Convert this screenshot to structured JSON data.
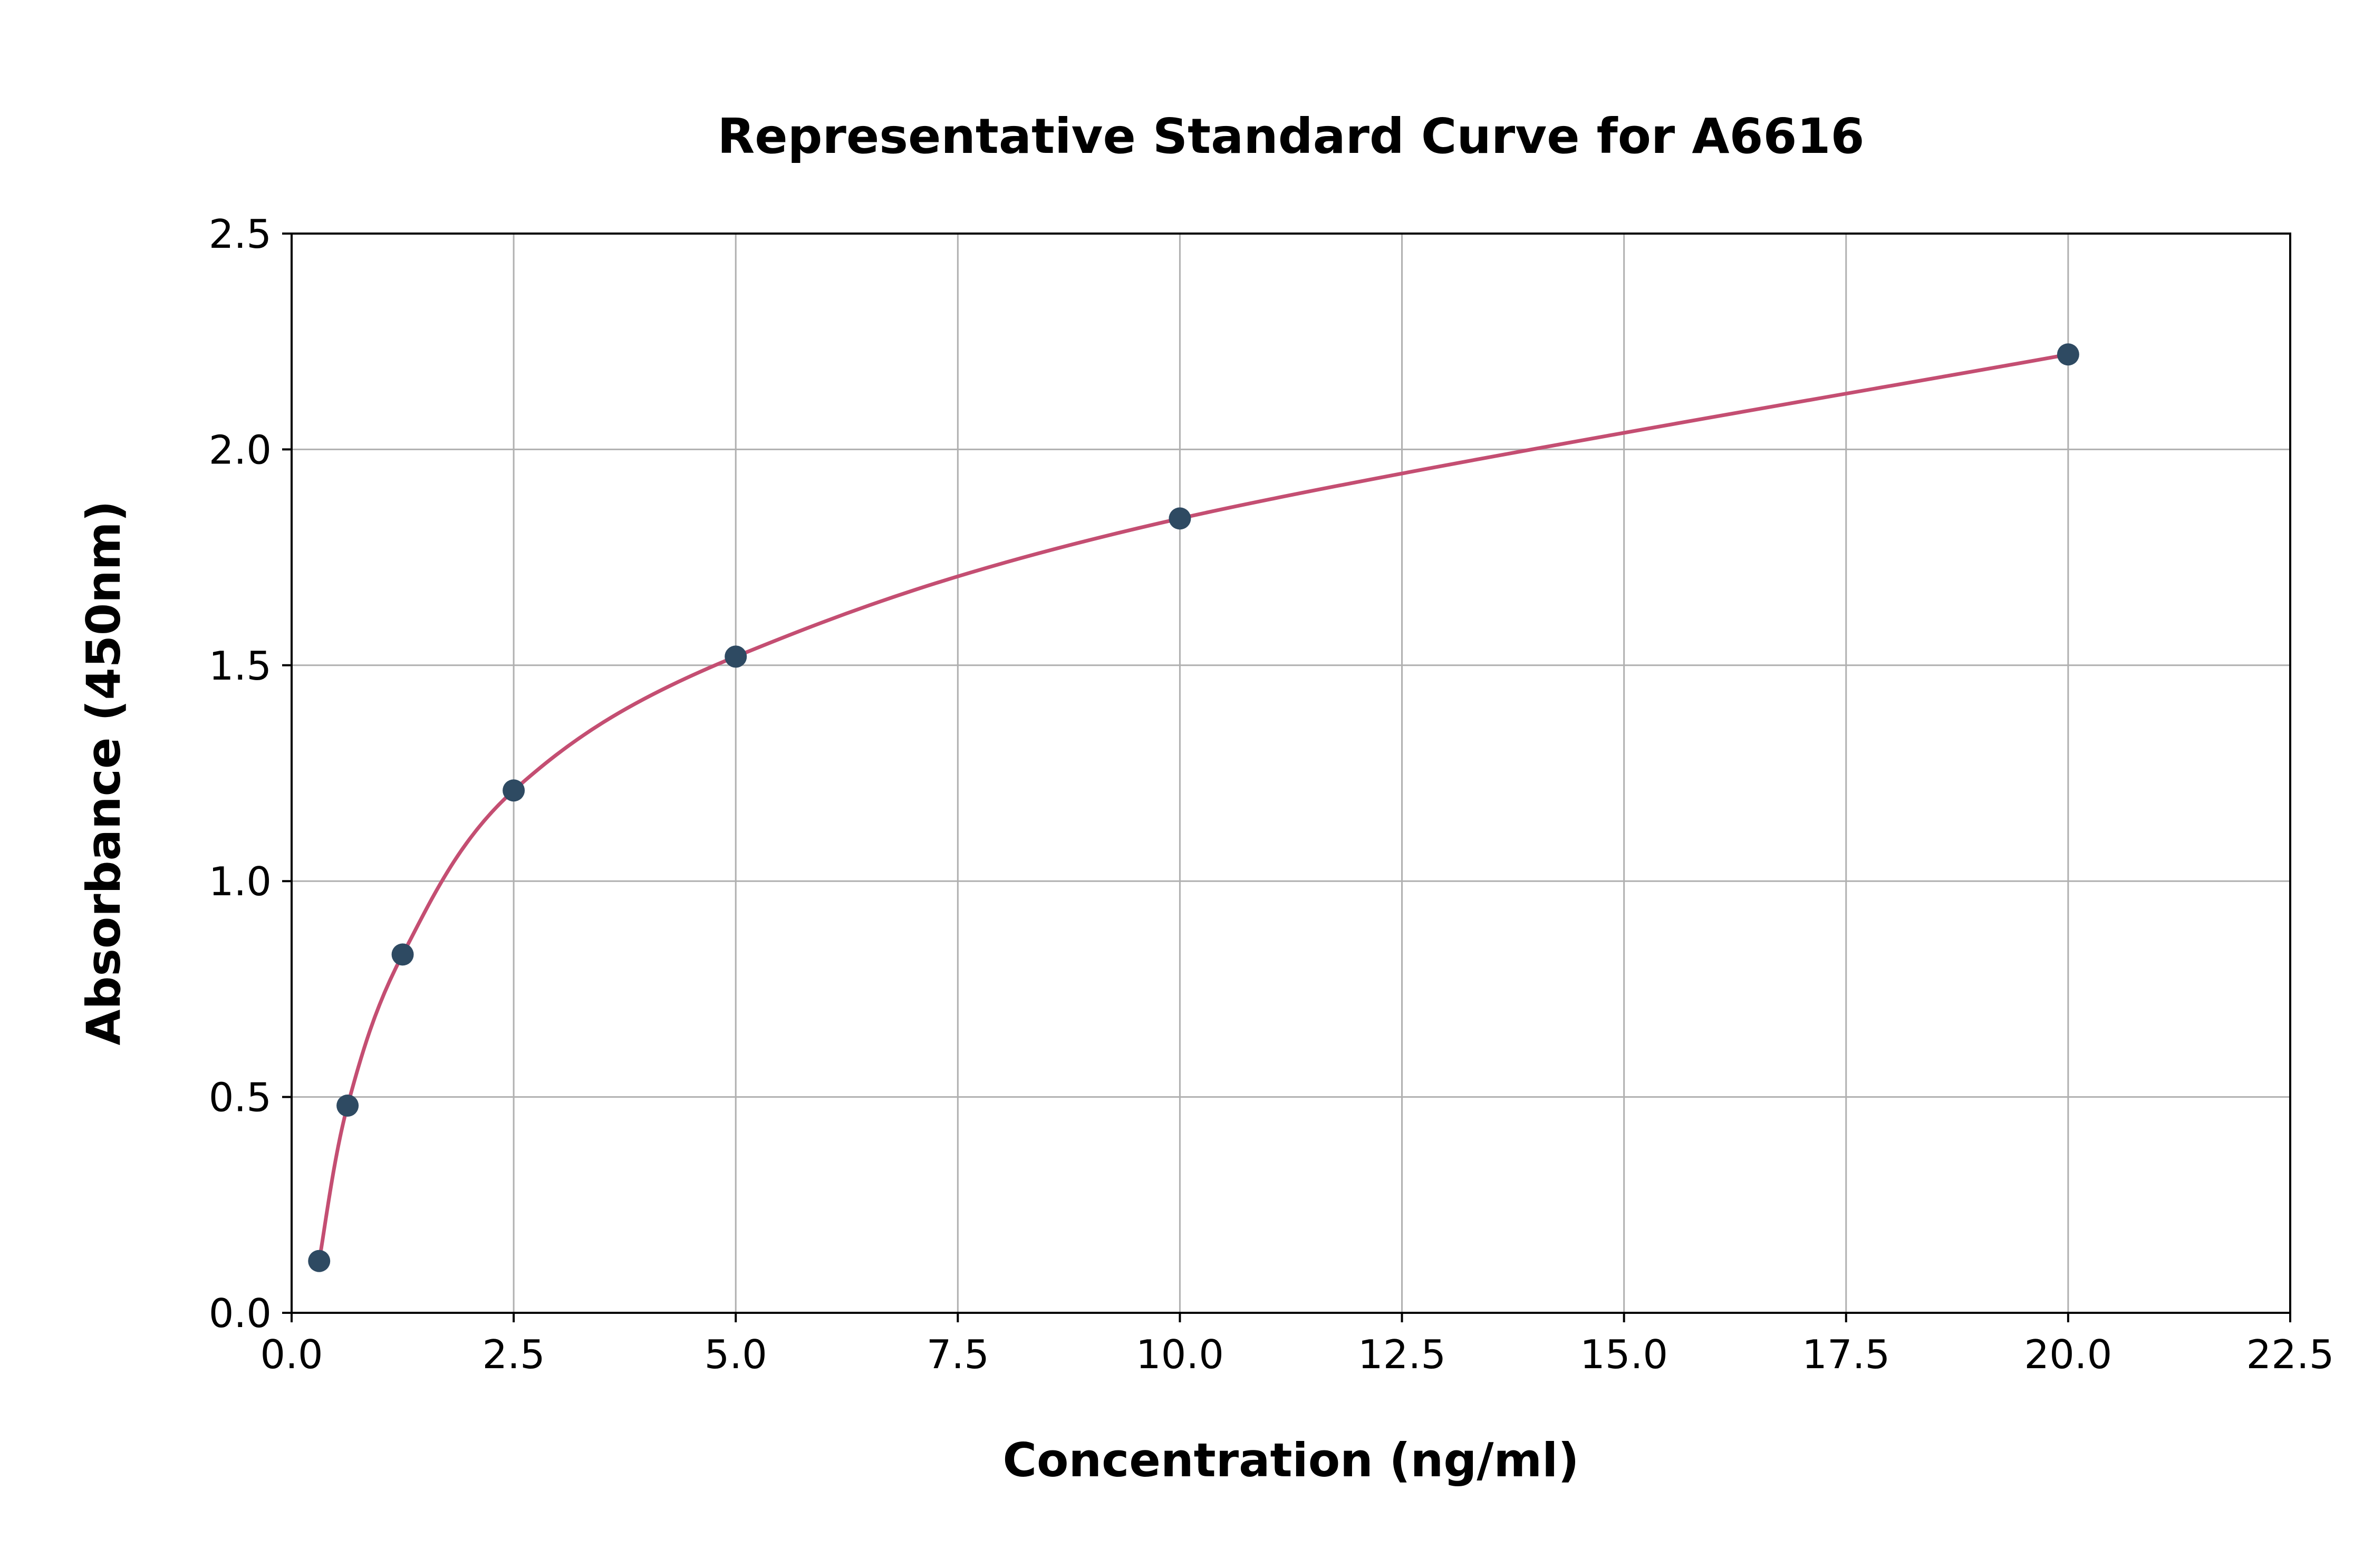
{
  "chart_data": {
    "type": "scatter",
    "title": "Representative Standard Curve for A6616",
    "xlabel": "Concentration (ng/ml)",
    "ylabel": "Absorbance (450nm)",
    "x": [
      0.31,
      0.63,
      1.25,
      2.5,
      5.0,
      10.0,
      20.0
    ],
    "y": [
      0.12,
      0.48,
      0.83,
      1.21,
      1.52,
      1.84,
      2.22
    ],
    "curve": "smooth fit through standard points",
    "xlim": [
      0.0,
      22.5
    ],
    "ylim": [
      0.0,
      2.5
    ],
    "xtick_labels": [
      "0.0",
      "2.5",
      "5.0",
      "7.5",
      "10.0",
      "12.5",
      "15.0",
      "17.5",
      "20.0",
      "22.5"
    ],
    "ytick_labels": [
      "0.0",
      "0.5",
      "1.0",
      "1.5",
      "2.0",
      "2.5"
    ],
    "grid": true,
    "legend": "none",
    "colors": {
      "curve": "#c44e72",
      "points": "#2e4a62",
      "grid": "#b0b0b0",
      "axes": "#000000",
      "text": "#000000",
      "background": "#ffffff"
    }
  }
}
